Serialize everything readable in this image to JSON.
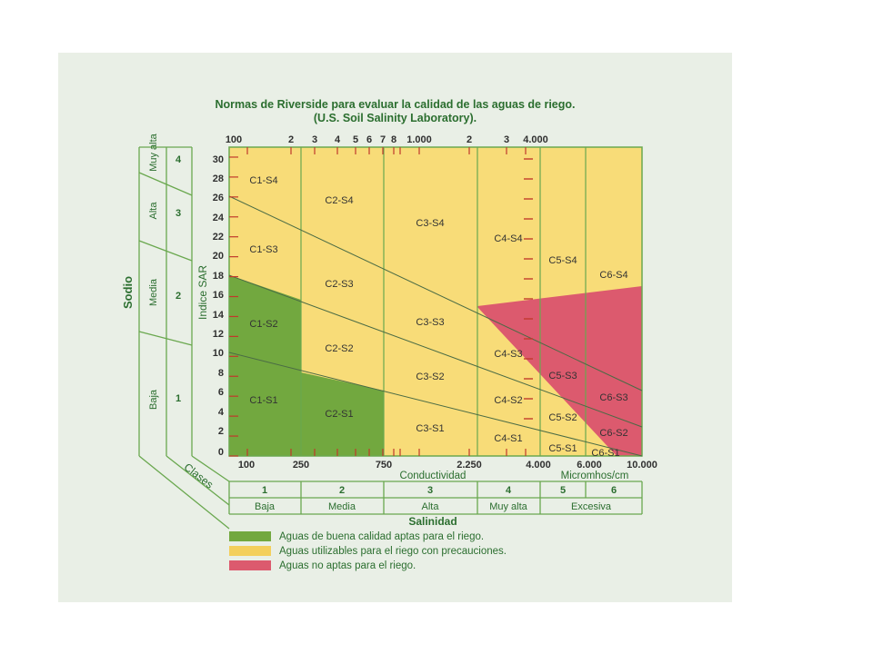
{
  "title_line1": "Normas de Riverside para evaluar la calidad de las aguas de riego.",
  "title_line2": "(U.S. Soil Salinity Laboratory).",
  "top_ticks": [
    "100",
    "2",
    "3",
    "4",
    "5",
    "6",
    "7",
    "8",
    "1.000",
    "2",
    "3",
    "4.000"
  ],
  "y_axis_label": "Indice SAR",
  "y_ticks": [
    "0",
    "2",
    "4",
    "6",
    "8",
    "10",
    "12",
    "14",
    "16",
    "18",
    "20",
    "22",
    "24",
    "26",
    "28",
    "30"
  ],
  "sodio": {
    "title": "Sodio",
    "bands": [
      {
        "name": "Baja",
        "num": "1"
      },
      {
        "name": "Media",
        "num": "2"
      },
      {
        "name": "Alta",
        "num": "3"
      },
      {
        "name": "Muy alta",
        "num": "4"
      }
    ]
  },
  "bottom_ticks": [
    "100",
    "250",
    "750",
    "2.250",
    "4.000",
    "6.000",
    "10.000"
  ],
  "conductividad_label": "Conductividad",
  "micromhos_label": "Micromhos/cm",
  "clases_label": "Clases",
  "salinidad": {
    "title": "Salinidad",
    "classes": [
      {
        "num": "1",
        "name": "Baja"
      },
      {
        "num": "2",
        "name": "Media"
      },
      {
        "num": "3",
        "name": "Alta"
      },
      {
        "num": "4",
        "name": "Muy alta"
      },
      {
        "num": "5",
        "name": ""
      },
      {
        "num": "6",
        "name": ""
      }
    ],
    "merged_label": "Excesiva"
  },
  "zone_labels": [
    "C1-S4",
    "C1-S3",
    "C1-S2",
    "C1-S1",
    "C2-S4",
    "C2-S3",
    "C2-S2",
    "C2-S1",
    "C3-S4",
    "C3-S3",
    "C3-S2",
    "C3-S1",
    "C4-S4",
    "C4-S3",
    "C4-S2",
    "C4-S1",
    "C5-S4",
    "C5-S3",
    "C5-S2",
    "C5-S1",
    "C6-S4",
    "C6-S3",
    "C6-S2",
    "C6-S1"
  ],
  "legend": [
    {
      "color": "#72a83f",
      "label": "Aguas de buena calidad aptas para el riego."
    },
    {
      "color": "#f3cf5c",
      "label": "Aguas utilizables para el riego con precauciones."
    },
    {
      "color": "#dc5a6e",
      "label": "Aguas no aptas para el riego."
    }
  ],
  "colors": {
    "green": "#72a83f",
    "yellow": "#f8dc78",
    "red": "#dc5a6e",
    "line": "#6aa84f",
    "text_green": "#2b6e2f"
  }
}
